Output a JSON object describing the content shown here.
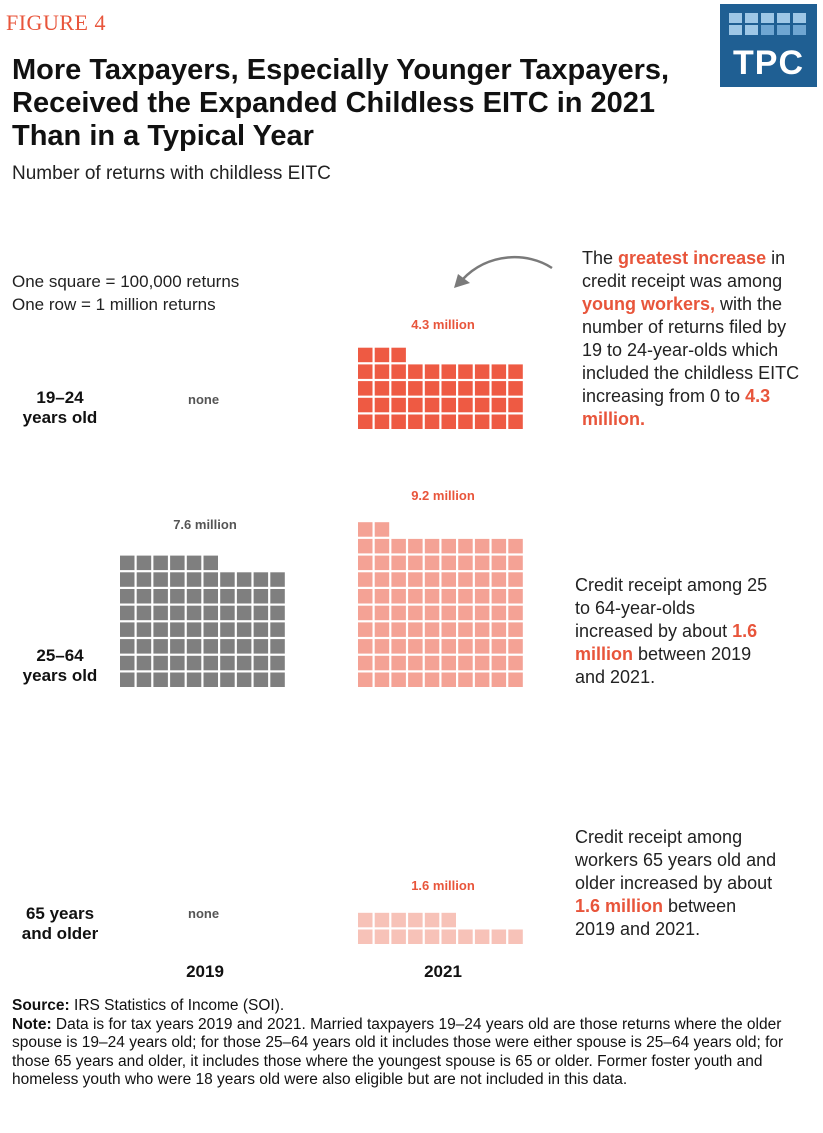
{
  "figure_label": "FIGURE 4",
  "logo": {
    "text": "TPC"
  },
  "colors": {
    "accent": "#e8553b",
    "age_19_24": "#ee5a43",
    "age_25_64_2021": "#f4a295",
    "age_65_2021": "#f7c2b8",
    "year_2019": "#7f7f7f",
    "logo_bg": "#1f5f93",
    "logo_tile": "#9ec7e6"
  },
  "title": "More Taxpayers, Especially Younger Taxpayers, Received the Expanded Childless EITC in 2021 Than in a Typical Year",
  "subtitle": "Number of returns with childless EITC",
  "legend": {
    "line1": "One square = 100,000 returns",
    "line2": "One row = 1 million returns"
  },
  "chart_data": {
    "type": "waffle",
    "unit_per_square": 100000,
    "squares_per_row": 10,
    "years": [
      "2019",
      "2021"
    ],
    "groups": [
      {
        "label_line1": "19–24",
        "label_line2": "years old",
        "values": {
          "2019": 0,
          "2021": 4300000
        },
        "labels": {
          "2019": "none",
          "2021": "4.3 million"
        }
      },
      {
        "label_line1": "25–64",
        "label_line2": "years old",
        "values": {
          "2019": 7600000,
          "2021": 9200000
        },
        "labels": {
          "2019": "7.6 million",
          "2021": "9.2 million"
        }
      },
      {
        "label_line1": "65 years",
        "label_line2": "and older",
        "values": {
          "2019": 0,
          "2021": 1600000
        },
        "labels": {
          "2019": "none",
          "2021": "1.6 million"
        }
      }
    ]
  },
  "annotations": {
    "a1": {
      "p1": "The ",
      "h1": "greatest increase",
      "p2": " in credit receipt was among ",
      "h2": "young workers,",
      "p3": " with the number of returns filed by 19 to 24-year-olds which included the childless EITC increasing from 0 to ",
      "h3": "4.3 million."
    },
    "a2": {
      "p1": "Credit receipt among 25 to 64-year-olds increased by about ",
      "h1": "1.6 million",
      "p2": " between 2019 and 2021."
    },
    "a3": {
      "p1": "Credit receipt among workers 65 years old and older increased by about ",
      "h1": "1.6 million",
      "p2": " between 2019 and 2021."
    }
  },
  "source": {
    "source_label": "Source:",
    "source_text": " IRS Statistics of Income (SOI).",
    "note_label": "Note:",
    "note_text": " Data is for tax years 2019 and 2021. Married taxpayers 19–24 years old are those returns where the older spouse is 19–24 years old; for those 25–64 years old it includes those were either spouse is 25–64 years old; for those 65 years and older, it includes those where the youngest spouse is 65 or older. Former foster youth and homeless youth who were 18 years old were also eligible but are not included in this data."
  }
}
